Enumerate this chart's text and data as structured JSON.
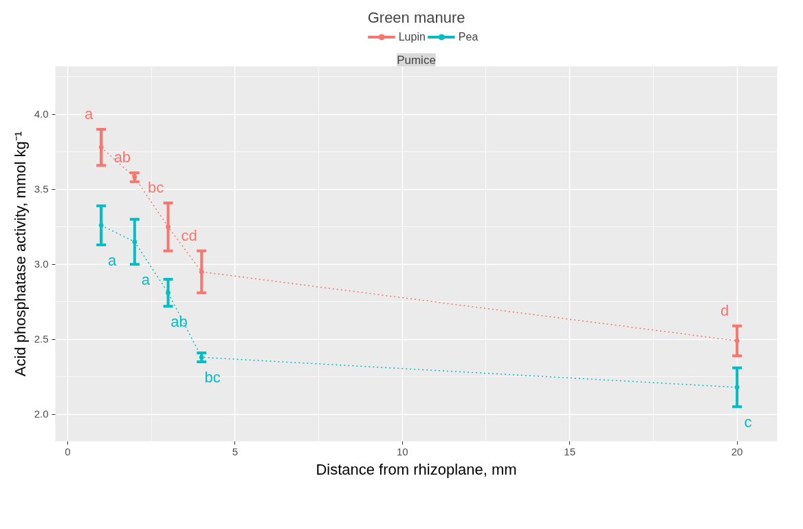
{
  "chart_data": {
    "type": "line",
    "title": "Pumice",
    "xlabel": "Distance from rhizoplane, mm",
    "ylabel": "Acid phosphatase activity, mmol kg⁻¹",
    "legend_title": "Green manure",
    "x": [
      1,
      2,
      3,
      4,
      20
    ],
    "series": [
      {
        "name": "Lupin",
        "color": "#f8766d",
        "values": [
          3.78,
          3.58,
          3.25,
          2.95,
          2.49
        ],
        "errors": [
          0.12,
          0.03,
          0.16,
          0.14,
          0.1
        ],
        "value_labels": [
          "a",
          "ab",
          "bc",
          "cd",
          "d"
        ]
      },
      {
        "name": "Pea",
        "color": "#00bfc4",
        "values": [
          3.26,
          3.15,
          2.81,
          2.38,
          2.18
        ],
        "errors": [
          0.13,
          0.15,
          0.09,
          0.03,
          0.13
        ],
        "value_labels": [
          "a",
          "a",
          "ab",
          "bc",
          "c"
        ]
      }
    ],
    "xlim": [
      -0.37,
      21.2
    ],
    "ylim": [
      1.82,
      4.32
    ],
    "xticks": [
      0,
      5,
      10,
      15,
      20
    ],
    "yticks": [
      {
        "value": 2,
        "label": "2.0"
      },
      2.5,
      {
        "value": 3,
        "label": "3.0"
      },
      3.5,
      {
        "value": 4,
        "label": "4.0"
      }
    ],
    "grid": true,
    "legend": "top",
    "marker": "circle",
    "line_style": "dotted"
  }
}
